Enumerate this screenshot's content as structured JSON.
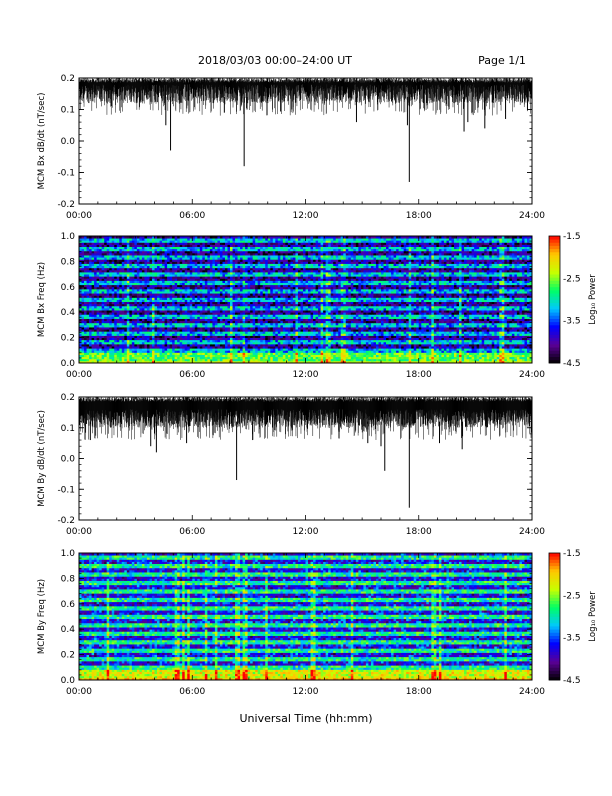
{
  "header": {
    "title": "2018/03/03  00:00–24:00 UT",
    "page": "Page 1/1"
  },
  "xlabel_bottom": "Universal Time (hh:mm)",
  "x_tick_labels": [
    "00:00",
    "06:00",
    "12:00",
    "18:00",
    "24:00"
  ],
  "colorbar": {
    "label": "Log₁₀ Power",
    "ticks": [
      -1.5,
      -2.5,
      -3.5,
      -4.5
    ],
    "tick_labels": [
      "-1.5",
      "-2.5",
      "-3.5",
      "-4.5"
    ],
    "range": [
      -4.5,
      -1.5
    ],
    "colormap": [
      "#000000",
      "#5a0096",
      "#0000ff",
      "#00c8ff",
      "#00ff64",
      "#c8ff00",
      "#ffc800",
      "#ff0000"
    ]
  },
  "chart_data": [
    {
      "type": "line",
      "ylabel": "MCM Bx dB/dt (nT/sec)",
      "xlim": [
        0,
        24
      ],
      "ylim": [
        -0.2,
        0.2
      ],
      "yticks": [
        -0.2,
        -0.1,
        0.0,
        0.1,
        0.2
      ],
      "ytick_labels": [
        "-0.2",
        "-0.1",
        "0.0",
        "0.1",
        "0.2"
      ],
      "envelope_top": 0.2,
      "typical_low": 0.12,
      "spikes": [
        {
          "x": 4.6,
          "y": 0.05
        },
        {
          "x": 4.85,
          "y": -0.03
        },
        {
          "x": 7.7,
          "y": 0.09
        },
        {
          "x": 8.75,
          "y": -0.08
        },
        {
          "x": 8.9,
          "y": 0.1
        },
        {
          "x": 14.7,
          "y": 0.06
        },
        {
          "x": 17.4,
          "y": 0.05
        },
        {
          "x": 17.5,
          "y": -0.13
        },
        {
          "x": 20.4,
          "y": 0.03
        },
        {
          "x": 20.6,
          "y": 0.06
        },
        {
          "x": 21.5,
          "y": 0.04
        },
        {
          "x": 22.6,
          "y": 0.07
        }
      ]
    },
    {
      "type": "heatmap",
      "ylabel": "MCM Bx Freq (Hz)",
      "xlim": [
        0,
        24
      ],
      "ylim": [
        0,
        1.0
      ],
      "yticks": [
        0.0,
        0.2,
        0.4,
        0.6,
        0.8,
        1.0
      ],
      "ytick_labels": [
        "0.0",
        "0.2",
        "0.4",
        "0.6",
        "0.8",
        "1.0"
      ],
      "background_log_power": -3.2,
      "low_freq_enhancement": -2.8,
      "harmonic_spacing_hz": 0.0667,
      "vertical_streaks_hours": [
        2.6,
        3.9,
        8.1,
        8.75,
        11.5,
        12.9,
        13.2,
        14.0,
        17.5,
        18.7,
        20.2,
        22.4
      ]
    },
    {
      "type": "line",
      "ylabel": "MCM By dB/dt (nT/sec)",
      "xlim": [
        0,
        24
      ],
      "ylim": [
        -0.2,
        0.2
      ],
      "yticks": [
        -0.2,
        -0.1,
        0.0,
        0.1,
        0.2
      ],
      "ytick_labels": [
        "-0.2",
        "-0.1",
        "0.0",
        "0.1",
        "0.2"
      ],
      "envelope_top": 0.2,
      "typical_low": 0.1,
      "spikes": [
        {
          "x": 0.6,
          "y": 0.06
        },
        {
          "x": 3.8,
          "y": 0.04
        },
        {
          "x": 4.1,
          "y": 0.02
        },
        {
          "x": 5.7,
          "y": 0.05
        },
        {
          "x": 8.35,
          "y": -0.07
        },
        {
          "x": 9.2,
          "y": 0.06
        },
        {
          "x": 15.3,
          "y": 0.05
        },
        {
          "x": 16.0,
          "y": 0.04
        },
        {
          "x": 16.2,
          "y": -0.04
        },
        {
          "x": 17.5,
          "y": -0.16
        },
        {
          "x": 19.1,
          "y": 0.05
        },
        {
          "x": 20.3,
          "y": 0.03
        }
      ]
    },
    {
      "type": "heatmap",
      "ylabel": "MCM By Freq (Hz)",
      "xlim": [
        0,
        24
      ],
      "ylim": [
        0,
        1.0
      ],
      "yticks": [
        0.0,
        0.2,
        0.4,
        0.6,
        0.8,
        1.0
      ],
      "ytick_labels": [
        "0.0",
        "0.2",
        "0.4",
        "0.6",
        "0.8",
        "1.0"
      ],
      "background_log_power": -2.9,
      "low_freq_enhancement": -2.4,
      "harmonic_spacing_hz": 0.0667,
      "vertical_streaks_hours": [
        1.5,
        5.2,
        5.5,
        5.8,
        6.7,
        7.3,
        8.4,
        8.8,
        9.9,
        12.4,
        14.5,
        18.8,
        19.1,
        22.6
      ]
    }
  ]
}
